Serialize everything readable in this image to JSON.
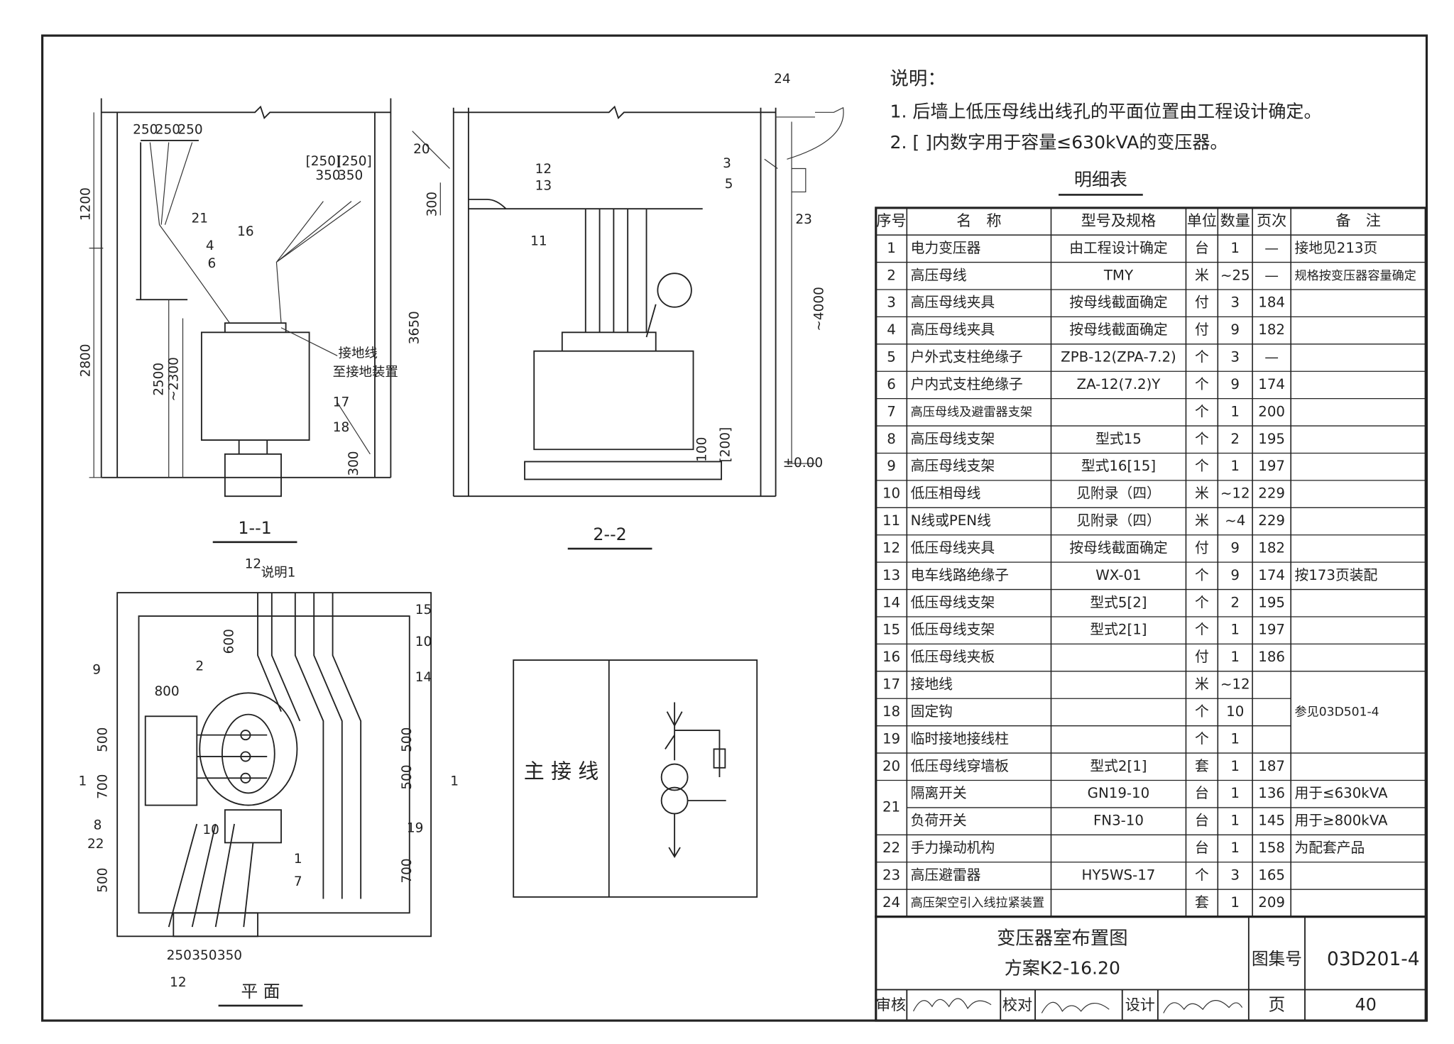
{
  "drawings": {
    "section_1_1": {
      "labels": [
        "250",
        "250",
        "250",
        "1200",
        "2800",
        "2500",
        "~2300",
        "21",
        "4",
        "6",
        "16",
        "[250]",
        "[250]",
        "350",
        "350",
        "接地线",
        "至接地装置",
        "17",
        "18",
        "300",
        "1--1"
      ]
    },
    "section_2_2": {
      "labels": [
        "24",
        "20",
        "12",
        "13",
        "300",
        "11",
        "3",
        "5",
        "23",
        "3650",
        "~4000",
        "100",
        "[200]",
        "±0.00",
        "2--2"
      ]
    },
    "plan": {
      "labels": [
        "12",
        "说明1",
        "15",
        "10",
        "14",
        "9",
        "800",
        "2",
        "600",
        "500",
        "700",
        "500",
        "500",
        "1",
        "1",
        "8",
        "22",
        "10",
        "1",
        "19",
        "7",
        "500",
        "700",
        "250",
        "350",
        "350",
        "12",
        "平 面"
      ]
    },
    "main_wiring": {
      "label": "主 接 线"
    }
  },
  "notes": {
    "title": "说明：",
    "items": [
      "1. 后墙上低压母线出线孔的平面位置由工程设计确定。",
      "2. [ ]内数字用于容量≤630kVA的变压器。"
    ]
  },
  "table": {
    "title": "明细表",
    "header": [
      "序号",
      "名　称",
      "型号及规格",
      "单位",
      "数量",
      "页次",
      "备　注"
    ],
    "rows": [
      {
        "no": "1",
        "name": "电力变压器",
        "model": "由工程设计确定",
        "unit": "台",
        "qty": "1",
        "page": "—",
        "remark": "接地见213页"
      },
      {
        "no": "2",
        "name": "高压母线",
        "model": "TMY",
        "unit": "米",
        "qty": "~25",
        "page": "—",
        "remark": "规格按变压器容量确定"
      },
      {
        "no": "3",
        "name": "高压母线夹具",
        "model": "按母线截面确定",
        "unit": "付",
        "qty": "3",
        "page": "184"
      },
      {
        "no": "4",
        "name": "高压母线夹具",
        "model": "按母线截面确定",
        "unit": "付",
        "qty": "9",
        "page": "182"
      },
      {
        "no": "5",
        "name": "户外式支柱绝缘子",
        "model": "ZPB-12(ZPA-7.2)",
        "unit": "个",
        "qty": "3",
        "page": "—"
      },
      {
        "no": "6",
        "name": "户内式支柱绝缘子",
        "model": "ZA-12(7.2)Y",
        "unit": "个",
        "qty": "9",
        "page": "174"
      },
      {
        "no": "7",
        "name": "高压母线及避雷器支架",
        "unit": "个",
        "qty": "1",
        "page": "200"
      },
      {
        "no": "8",
        "name": "高压母线支架",
        "model": "型式15",
        "unit": "个",
        "qty": "2",
        "page": "195"
      },
      {
        "no": "9",
        "name": "高压母线支架",
        "model": "型式16[15]",
        "unit": "个",
        "qty": "1",
        "page": "197"
      },
      {
        "no": "10",
        "name": "低压相母线",
        "model": "见附录（四）",
        "unit": "米",
        "qty": "~12",
        "page": "229"
      },
      {
        "no": "11",
        "name": "N线或PEN线",
        "model": "见附录（四）",
        "unit": "米",
        "qty": "~4",
        "page": "229"
      },
      {
        "no": "12",
        "name": "低压母线夹具",
        "model": "按母线截面确定",
        "unit": "付",
        "qty": "9",
        "page": "182"
      },
      {
        "no": "13",
        "name": "电车线路绝缘子",
        "model": "WX-01",
        "unit": "个",
        "qty": "9",
        "page": "174",
        "remark": "按173页装配"
      },
      {
        "no": "14",
        "name": "低压母线支架",
        "model": "型式5[2]",
        "unit": "个",
        "qty": "2",
        "page": "195"
      },
      {
        "no": "15",
        "name": "低压母线支架",
        "model": "型式2[1]",
        "unit": "个",
        "qty": "1",
        "page": "197"
      },
      {
        "no": "16",
        "name": "低压母线夹板",
        "unit": "付",
        "qty": "1",
        "page": "186"
      },
      {
        "no": "17",
        "name": "接地线",
        "unit": "米",
        "qty": "~12",
        "remark": "参见03D501-4"
      },
      {
        "no": "18",
        "name": "固定钩",
        "unit": "个",
        "qty": "10"
      },
      {
        "no": "19",
        "name": "临时接地接线柱",
        "unit": "个",
        "qty": "1"
      },
      {
        "no": "20",
        "name": "低压母线穿墙板",
        "model": "型式2[1]",
        "unit": "套",
        "qty": "1",
        "page": "187"
      },
      {
        "no": "21",
        "name": "隔离开关",
        "model": "GN19-10",
        "unit": "台",
        "qty": "1",
        "page": "136",
        "remark": "用于≤630kVA"
      },
      {
        "name": "负荷开关",
        "model": "FN3-10",
        "unit": "台",
        "qty": "1",
        "page": "145",
        "remark": "用于≥800kVA"
      },
      {
        "no": "22",
        "name": "手力操动机构",
        "unit": "台",
        "qty": "1",
        "page": "158",
        "remark": "为配套产品"
      },
      {
        "no": "23",
        "name": "高压避雷器",
        "model": "HY5WS-17",
        "unit": "个",
        "qty": "3",
        "page": "165"
      },
      {
        "no": "24",
        "name": "高压架空引入线拉紧装置",
        "unit": "套",
        "qty": "1",
        "page": "209"
      }
    ]
  },
  "title_block": {
    "title": "变压器室布置图",
    "subtitle": "方案K2-16.20",
    "atlas_label": "图集号",
    "atlas_no": "03D201-4",
    "page_label": "页",
    "page": "40",
    "review_label": "审核",
    "check_label": "校对",
    "design_label": "设计"
  }
}
